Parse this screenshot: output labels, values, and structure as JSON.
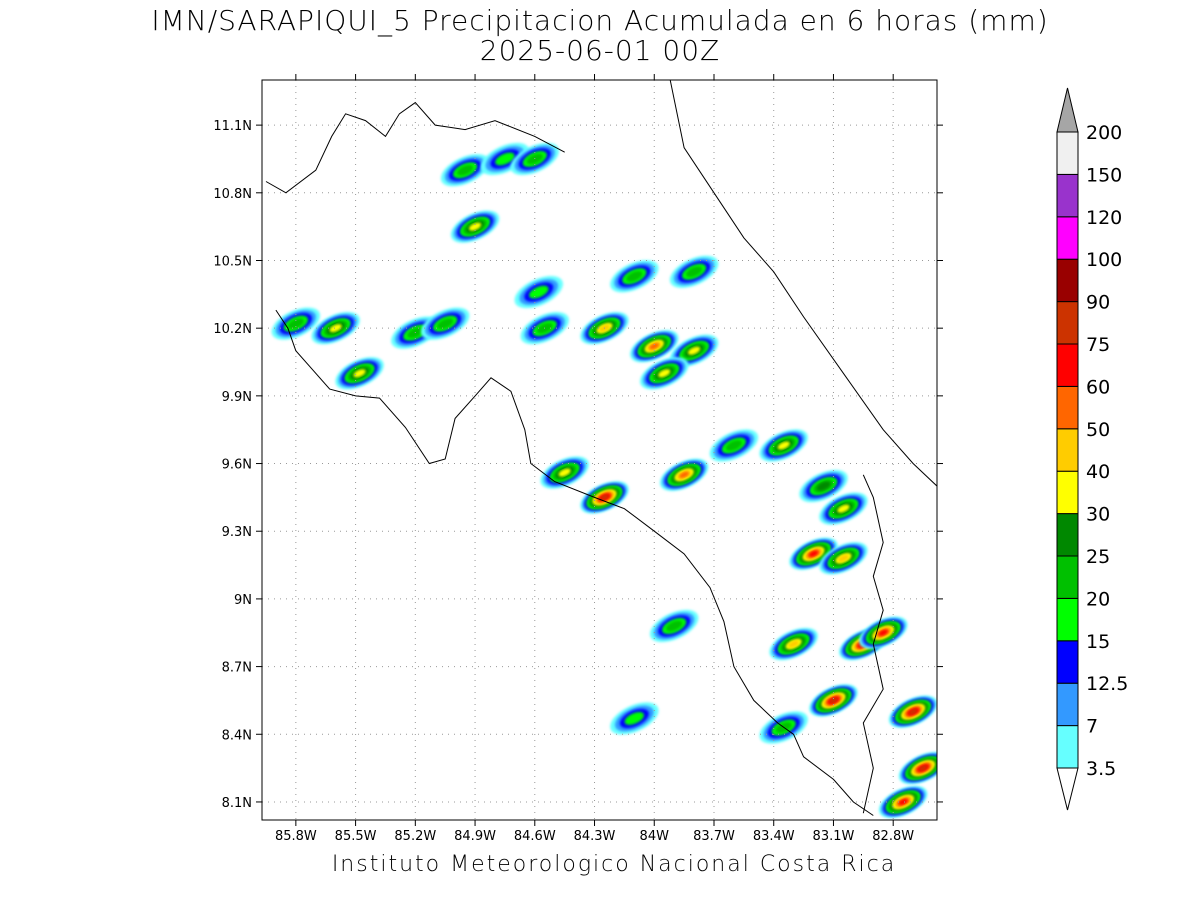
{
  "title_line1": "IMN/SARAPIQUI_5 Precipitacion Acumulada en 6 horas (mm)",
  "title_line2": "2025-06-01 00Z",
  "footer": "Instituto Meteorologico Nacional Costa Rica",
  "map": {
    "lon_range": [
      -85.97,
      -82.58
    ],
    "lat_range": [
      8.02,
      11.3
    ],
    "x_ticks": [
      {
        "lon": -85.8,
        "label": "85.8W"
      },
      {
        "lon": -85.5,
        "label": "85.5W"
      },
      {
        "lon": -85.2,
        "label": "85.2W"
      },
      {
        "lon": -84.9,
        "label": "84.9W"
      },
      {
        "lon": -84.6,
        "label": "84.6W"
      },
      {
        "lon": -84.3,
        "label": "84.3W"
      },
      {
        "lon": -84.0,
        "label": "84W"
      },
      {
        "lon": -83.7,
        "label": "83.7W"
      },
      {
        "lon": -83.4,
        "label": "83.4W"
      },
      {
        "lon": -83.1,
        "label": "83.1W"
      },
      {
        "lon": -82.8,
        "label": "82.8W"
      }
    ],
    "y_ticks": [
      {
        "lat": 11.1,
        "label": "11.1N"
      },
      {
        "lat": 10.8,
        "label": "10.8N"
      },
      {
        "lat": 10.5,
        "label": "10.5N"
      },
      {
        "lat": 10.2,
        "label": "10.2N"
      },
      {
        "lat": 9.9,
        "label": "9.9N"
      },
      {
        "lat": 9.6,
        "label": "9.6N"
      },
      {
        "lat": 9.3,
        "label": "9.3N"
      },
      {
        "lat": 9.0,
        "label": "9N"
      },
      {
        "lat": 8.7,
        "label": "8.7N"
      },
      {
        "lat": 8.4,
        "label": "8.4N"
      },
      {
        "lat": 8.1,
        "label": "8.1N"
      }
    ],
    "grid": true,
    "coastline": [
      [
        -85.9,
        10.28
      ],
      [
        -85.84,
        10.2
      ],
      [
        -85.8,
        10.1
      ],
      [
        -85.72,
        10.02
      ],
      [
        -85.63,
        9.93
      ],
      [
        -85.5,
        9.9
      ],
      [
        -85.38,
        9.89
      ],
      [
        -85.25,
        9.76
      ],
      [
        -85.13,
        9.6
      ],
      [
        -85.05,
        9.62
      ],
      [
        -85.0,
        9.8
      ],
      [
        -84.9,
        9.9
      ],
      [
        -84.82,
        9.98
      ],
      [
        -84.72,
        9.92
      ],
      [
        -84.65,
        9.75
      ],
      [
        -84.62,
        9.6
      ],
      [
        -84.5,
        9.52
      ],
      [
        -84.3,
        9.45
      ],
      [
        -84.15,
        9.4
      ],
      [
        -84.0,
        9.3
      ],
      [
        -83.85,
        9.2
      ],
      [
        -83.72,
        9.05
      ],
      [
        -83.65,
        8.9
      ],
      [
        -83.6,
        8.7
      ],
      [
        -83.5,
        8.55
      ],
      [
        -83.38,
        8.45
      ],
      [
        -83.3,
        8.4
      ],
      [
        -83.25,
        8.3
      ],
      [
        -83.1,
        8.2
      ],
      [
        -83.0,
        8.1
      ],
      [
        -82.9,
        8.04
      ]
    ],
    "caribbean_coast": [
      [
        -83.92,
        11.3
      ],
      [
        -83.85,
        11.0
      ],
      [
        -83.7,
        10.8
      ],
      [
        -83.55,
        10.6
      ],
      [
        -83.4,
        10.45
      ],
      [
        -83.25,
        10.25
      ],
      [
        -83.05,
        10.0
      ],
      [
        -82.85,
        9.75
      ],
      [
        -82.7,
        9.6
      ],
      [
        -82.58,
        9.5
      ]
    ],
    "nicoya_coast": [
      [
        -85.95,
        10.85
      ],
      [
        -85.85,
        10.8
      ],
      [
        -85.7,
        10.9
      ],
      [
        -85.62,
        11.05
      ],
      [
        -85.55,
        11.15
      ],
      [
        -85.45,
        11.12
      ],
      [
        -85.35,
        11.05
      ],
      [
        -85.28,
        11.15
      ],
      [
        -85.2,
        11.2
      ],
      [
        -85.1,
        11.1
      ],
      [
        -84.95,
        11.08
      ],
      [
        -84.8,
        11.12
      ],
      [
        -84.6,
        11.05
      ],
      [
        -84.45,
        10.98
      ]
    ],
    "border_panama": [
      [
        -82.95,
        9.55
      ],
      [
        -82.9,
        9.45
      ],
      [
        -82.85,
        9.25
      ],
      [
        -82.9,
        9.1
      ],
      [
        -82.85,
        8.95
      ],
      [
        -82.9,
        8.8
      ],
      [
        -82.85,
        8.6
      ],
      [
        -82.95,
        8.45
      ],
      [
        -82.9,
        8.25
      ],
      [
        -82.95,
        8.05
      ]
    ],
    "precip_cells": [
      {
        "lon": -85.8,
        "lat": 10.22,
        "mm": 20
      },
      {
        "lon": -85.6,
        "lat": 10.2,
        "mm": 30
      },
      {
        "lon": -85.48,
        "lat": 10.0,
        "mm": 35
      },
      {
        "lon": -85.2,
        "lat": 10.18,
        "mm": 20
      },
      {
        "lon": -85.05,
        "lat": 10.22,
        "mm": 20
      },
      {
        "lon": -84.9,
        "lat": 10.65,
        "mm": 30
      },
      {
        "lon": -84.95,
        "lat": 10.9,
        "mm": 20
      },
      {
        "lon": -84.75,
        "lat": 10.95,
        "mm": 15
      },
      {
        "lon": -84.6,
        "lat": 10.95,
        "mm": 20
      },
      {
        "lon": -84.58,
        "lat": 10.36,
        "mm": 15
      },
      {
        "lon": -84.55,
        "lat": 10.2,
        "mm": 20
      },
      {
        "lon": -84.25,
        "lat": 10.2,
        "mm": 40
      },
      {
        "lon": -84.0,
        "lat": 10.12,
        "mm": 50
      },
      {
        "lon": -83.8,
        "lat": 10.1,
        "mm": 35
      },
      {
        "lon": -83.95,
        "lat": 10.0,
        "mm": 35
      },
      {
        "lon": -84.1,
        "lat": 10.43,
        "mm": 20
      },
      {
        "lon": -83.8,
        "lat": 10.45,
        "mm": 20
      },
      {
        "lon": -84.45,
        "lat": 9.56,
        "mm": 30
      },
      {
        "lon": -84.25,
        "lat": 9.45,
        "mm": 75
      },
      {
        "lon": -83.85,
        "lat": 9.55,
        "mm": 50
      },
      {
        "lon": -83.6,
        "lat": 9.68,
        "mm": 20
      },
      {
        "lon": -83.35,
        "lat": 9.68,
        "mm": 30
      },
      {
        "lon": -83.15,
        "lat": 9.5,
        "mm": 25
      },
      {
        "lon": -83.05,
        "lat": 9.4,
        "mm": 30
      },
      {
        "lon": -83.2,
        "lat": 9.2,
        "mm": 60
      },
      {
        "lon": -83.05,
        "lat": 9.18,
        "mm": 40
      },
      {
        "lon": -82.95,
        "lat": 8.8,
        "mm": 75
      },
      {
        "lon": -82.85,
        "lat": 8.85,
        "mm": 60
      },
      {
        "lon": -82.7,
        "lat": 8.5,
        "mm": 75
      },
      {
        "lon": -82.65,
        "lat": 8.25,
        "mm": 75
      },
      {
        "lon": -82.75,
        "lat": 8.1,
        "mm": 60
      },
      {
        "lon": -83.1,
        "lat": 8.55,
        "mm": 75
      },
      {
        "lon": -83.3,
        "lat": 8.8,
        "mm": 40
      },
      {
        "lon": -83.9,
        "lat": 8.88,
        "mm": 20
      },
      {
        "lon": -84.1,
        "lat": 8.47,
        "mm": 15
      },
      {
        "lon": -83.35,
        "lat": 8.43,
        "mm": 20
      }
    ]
  },
  "colorbar": {
    "levels": [
      "3.5",
      "7",
      "12.5",
      "15",
      "20",
      "25",
      "30",
      "40",
      "50",
      "60",
      "75",
      "90",
      "100",
      "120",
      "150",
      "200"
    ],
    "colors": [
      "#ffffff",
      "#66ffff",
      "#3399ff",
      "#0000ff",
      "#00ff00",
      "#00c000",
      "#008800",
      "#ffff00",
      "#ffcc00",
      "#ff6600",
      "#ff0000",
      "#cc3300",
      "#990000",
      "#ff00ff",
      "#9933cc",
      "#f0f0f0",
      "#a6a6a6"
    ]
  }
}
